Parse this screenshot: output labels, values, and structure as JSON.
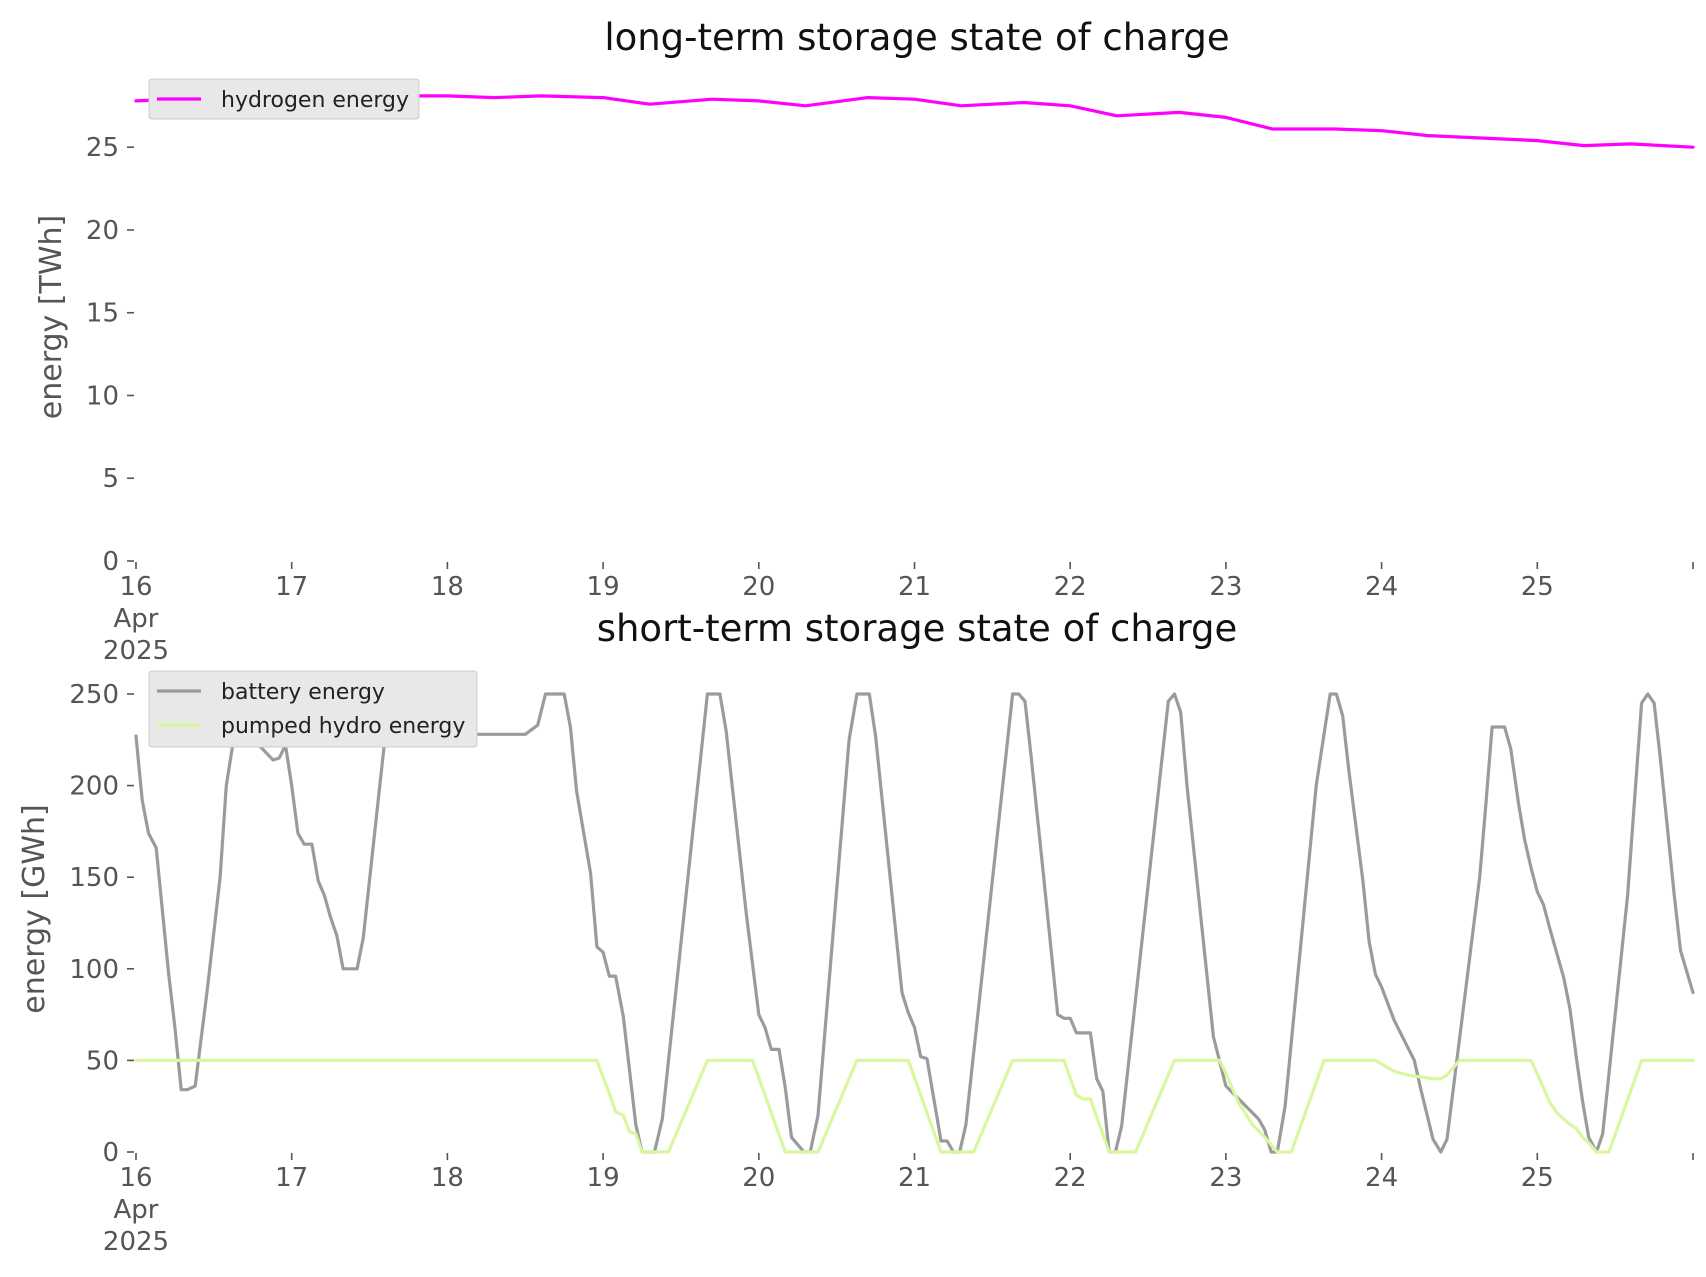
{
  "chart_data": [
    {
      "type": "line",
      "title": "long-term storage state of charge",
      "ylabel": "energy [TWh]",
      "xlabel": "",
      "ylim": [
        0,
        29
      ],
      "y_ticks": [
        0,
        5,
        10,
        15,
        20,
        25
      ],
      "x_range_days": [
        16,
        26
      ],
      "x_ticks": [
        {
          "day": 16,
          "label": "16",
          "sub1": "Apr",
          "sub2": "2025"
        },
        {
          "day": 17,
          "label": "17"
        },
        {
          "day": 18,
          "label": "18"
        },
        {
          "day": 19,
          "label": "19"
        },
        {
          "day": 20,
          "label": "20"
        },
        {
          "day": 21,
          "label": "21"
        },
        {
          "day": 22,
          "label": "22"
        },
        {
          "day": 23,
          "label": "23"
        },
        {
          "day": 24,
          "label": "24"
        },
        {
          "day": 25,
          "label": "25"
        }
      ],
      "legend_position": "top-left",
      "grid": false,
      "series": [
        {
          "name": "hydrogen energy",
          "color": "#ff00ff",
          "points": [
            [
              16.0,
              27.8
            ],
            [
              16.5,
              28.0
            ],
            [
              17.0,
              28.1
            ],
            [
              17.5,
              28.1
            ],
            [
              18.0,
              28.1
            ],
            [
              18.3,
              28.0
            ],
            [
              18.6,
              28.1
            ],
            [
              19.0,
              28.0
            ],
            [
              19.3,
              27.6
            ],
            [
              19.7,
              27.9
            ],
            [
              20.0,
              27.8
            ],
            [
              20.3,
              27.5
            ],
            [
              20.7,
              28.0
            ],
            [
              21.0,
              27.9
            ],
            [
              21.3,
              27.5
            ],
            [
              21.7,
              27.7
            ],
            [
              22.0,
              27.5
            ],
            [
              22.3,
              26.9
            ],
            [
              22.7,
              27.1
            ],
            [
              23.0,
              26.8
            ],
            [
              23.3,
              26.1
            ],
            [
              23.7,
              26.1
            ],
            [
              24.0,
              26.0
            ],
            [
              24.3,
              25.7
            ],
            [
              25.0,
              25.4
            ],
            [
              25.3,
              25.1
            ],
            [
              25.6,
              25.2
            ],
            [
              26.0,
              25.0
            ]
          ]
        }
      ]
    },
    {
      "type": "line",
      "title": "short-term storage state of charge",
      "ylabel": "energy [GWh]",
      "xlabel": "",
      "ylim": [
        0,
        262
      ],
      "y_ticks": [
        0,
        50,
        100,
        150,
        200,
        250
      ],
      "x_range_days": [
        16,
        26
      ],
      "x_ticks": [
        {
          "day": 16,
          "label": "16",
          "sub1": "Apr",
          "sub2": "2025"
        },
        {
          "day": 17,
          "label": "17"
        },
        {
          "day": 18,
          "label": "18"
        },
        {
          "day": 19,
          "label": "19"
        },
        {
          "day": 20,
          "label": "20"
        },
        {
          "day": 21,
          "label": "21"
        },
        {
          "day": 22,
          "label": "22"
        },
        {
          "day": 23,
          "label": "23"
        },
        {
          "day": 24,
          "label": "24"
        },
        {
          "day": 25,
          "label": "25"
        }
      ],
      "legend_position": "top-left",
      "grid": false,
      "series": [
        {
          "name": "battery energy",
          "color": "#9b9b9b",
          "points": [
            [
              16.0,
              227
            ],
            [
              16.04,
              192
            ],
            [
              16.08,
              174
            ],
            [
              16.13,
              166
            ],
            [
              16.21,
              97
            ],
            [
              16.25,
              68
            ],
            [
              16.29,
              34
            ],
            [
              16.33,
              34
            ],
            [
              16.38,
              36
            ],
            [
              16.46,
              90
            ],
            [
              16.54,
              150
            ],
            [
              16.58,
              200
            ],
            [
              16.63,
              227
            ],
            [
              16.67,
              250
            ],
            [
              16.75,
              240
            ],
            [
              16.79,
              222
            ],
            [
              16.88,
              214
            ],
            [
              16.92,
              215
            ],
            [
              16.96,
              222
            ],
            [
              17.0,
              200
            ],
            [
              17.04,
              174
            ],
            [
              17.08,
              168
            ],
            [
              17.13,
              168
            ],
            [
              17.17,
              148
            ],
            [
              17.21,
              140
            ],
            [
              17.25,
              128
            ],
            [
              17.29,
              118
            ],
            [
              17.33,
              100
            ],
            [
              17.42,
              100
            ],
            [
              17.46,
              117
            ],
            [
              17.54,
              180
            ],
            [
              17.63,
              250
            ],
            [
              17.96,
              250
            ],
            [
              18.04,
              228
            ],
            [
              18.5,
              228
            ],
            [
              18.58,
              233
            ],
            [
              18.63,
              250
            ],
            [
              18.75,
              250
            ],
            [
              18.79,
              232
            ],
            [
              18.83,
              197
            ],
            [
              18.92,
              152
            ],
            [
              18.96,
              112
            ],
            [
              19.0,
              109
            ],
            [
              19.04,
              96
            ],
            [
              19.08,
              96
            ],
            [
              19.13,
              74
            ],
            [
              19.21,
              15
            ],
            [
              19.25,
              0
            ],
            [
              19.33,
              0
            ],
            [
              19.38,
              18
            ],
            [
              19.67,
              250
            ],
            [
              19.75,
              250
            ],
            [
              19.79,
              230
            ],
            [
              19.92,
              130
            ],
            [
              20.0,
              75
            ],
            [
              20.04,
              68
            ],
            [
              20.08,
              56
            ],
            [
              20.13,
              56
            ],
            [
              20.17,
              35
            ],
            [
              20.21,
              8
            ],
            [
              20.29,
              0
            ],
            [
              20.33,
              0
            ],
            [
              20.38,
              20
            ],
            [
              20.58,
              225
            ],
            [
              20.63,
              250
            ],
            [
              20.71,
              250
            ],
            [
              20.75,
              227
            ],
            [
              20.92,
              87
            ],
            [
              20.96,
              76
            ],
            [
              21.0,
              68
            ],
            [
              21.04,
              52
            ],
            [
              21.08,
              51
            ],
            [
              21.17,
              6
            ],
            [
              21.21,
              6
            ],
            [
              21.25,
              0
            ],
            [
              21.29,
              0
            ],
            [
              21.33,
              15
            ],
            [
              21.63,
              250
            ],
            [
              21.67,
              250
            ],
            [
              21.71,
              246
            ],
            [
              21.75,
              215
            ],
            [
              21.83,
              150
            ],
            [
              21.92,
              75
            ],
            [
              21.96,
              73
            ],
            [
              22.0,
              73
            ],
            [
              22.04,
              65
            ],
            [
              22.13,
              65
            ],
            [
              22.17,
              40
            ],
            [
              22.21,
              33
            ],
            [
              22.25,
              0
            ],
            [
              22.29,
              0
            ],
            [
              22.33,
              14
            ],
            [
              22.63,
              246
            ],
            [
              22.67,
              250
            ],
            [
              22.71,
              240
            ],
            [
              22.75,
              200
            ],
            [
              22.92,
              63
            ],
            [
              23.0,
              36
            ],
            [
              23.21,
              18
            ],
            [
              23.25,
              12
            ],
            [
              23.29,
              0
            ],
            [
              23.33,
              0
            ],
            [
              23.38,
              25
            ],
            [
              23.58,
              200
            ],
            [
              23.63,
              228
            ],
            [
              23.67,
              250
            ],
            [
              23.71,
              250
            ],
            [
              23.75,
              238
            ],
            [
              23.79,
              208
            ],
            [
              23.88,
              148
            ],
            [
              23.92,
              115
            ],
            [
              23.96,
              97
            ],
            [
              24.0,
              90
            ],
            [
              24.08,
              72
            ],
            [
              24.21,
              50
            ],
            [
              24.25,
              35
            ],
            [
              24.33,
              7
            ],
            [
              24.38,
              0
            ],
            [
              24.42,
              7
            ],
            [
              24.63,
              150
            ],
            [
              24.67,
              190
            ],
            [
              24.71,
              232
            ],
            [
              24.79,
              232
            ],
            [
              24.83,
              220
            ],
            [
              24.88,
              190
            ],
            [
              24.92,
              170
            ],
            [
              24.96,
              155
            ],
            [
              25.0,
              142
            ],
            [
              25.04,
              135
            ],
            [
              25.08,
              122
            ],
            [
              25.17,
              95
            ],
            [
              25.21,
              78
            ],
            [
              25.25,
              52
            ],
            [
              25.29,
              28
            ],
            [
              25.33,
              8
            ],
            [
              25.38,
              0
            ],
            [
              25.42,
              10
            ],
            [
              25.58,
              140
            ],
            [
              25.67,
              245
            ],
            [
              25.71,
              250
            ],
            [
              25.75,
              245
            ],
            [
              25.79,
              215
            ],
            [
              25.88,
              140
            ],
            [
              25.92,
              110
            ],
            [
              26.0,
              87
            ]
          ]
        },
        {
          "name": "pumped hydro energy",
          "color": "#d9f7a1",
          "points": [
            [
              16.0,
              50
            ],
            [
              18.96,
              50
            ],
            [
              19.04,
              32
            ],
            [
              19.08,
              22
            ],
            [
              19.13,
              20
            ],
            [
              19.17,
              11
            ],
            [
              19.21,
              10
            ],
            [
              19.25,
              0
            ],
            [
              19.42,
              0
            ],
            [
              19.67,
              50
            ],
            [
              19.96,
              50
            ],
            [
              20.17,
              0
            ],
            [
              20.38,
              0
            ],
            [
              20.63,
              50
            ],
            [
              20.96,
              50
            ],
            [
              21.17,
              0
            ],
            [
              21.38,
              0
            ],
            [
              21.63,
              50
            ],
            [
              21.96,
              50
            ],
            [
              22.04,
              31
            ],
            [
              22.08,
              29
            ],
            [
              22.13,
              29
            ],
            [
              22.25,
              0
            ],
            [
              22.42,
              0
            ],
            [
              22.67,
              50
            ],
            [
              22.96,
              50
            ],
            [
              23.0,
              43
            ],
            [
              23.08,
              27
            ],
            [
              23.17,
              15
            ],
            [
              23.25,
              8
            ],
            [
              23.33,
              0
            ],
            [
              23.42,
              0
            ],
            [
              23.63,
              50
            ],
            [
              23.96,
              50
            ],
            [
              24.04,
              46
            ],
            [
              24.08,
              44
            ],
            [
              24.17,
              42
            ],
            [
              24.25,
              41
            ],
            [
              24.33,
              40
            ],
            [
              24.38,
              40
            ],
            [
              24.42,
              42
            ],
            [
              24.5,
              50
            ],
            [
              24.96,
              50
            ],
            [
              25.04,
              35
            ],
            [
              25.08,
              27
            ],
            [
              25.13,
              21
            ],
            [
              25.21,
              15
            ],
            [
              25.25,
              13
            ],
            [
              25.29,
              8
            ],
            [
              25.33,
              5
            ],
            [
              25.38,
              0
            ],
            [
              25.46,
              0
            ],
            [
              25.67,
              50
            ],
            [
              26.0,
              50
            ]
          ]
        }
      ]
    }
  ]
}
